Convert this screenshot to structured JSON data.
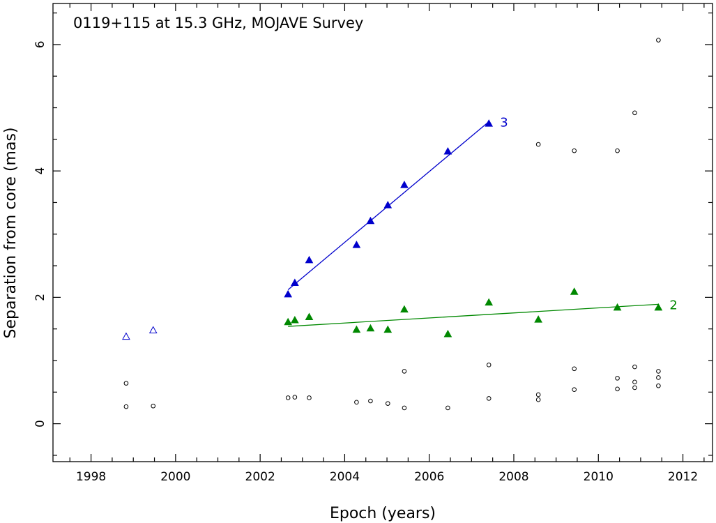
{
  "chart_data": {
    "type": "scatter",
    "title": "0119+115 at 15.3 GHz, MOJAVE Survey",
    "xlabel": "Epoch (years)",
    "ylabel": "Separation from core (mas)",
    "xlim": [
      1997.1,
      2012.7
    ],
    "ylim": [
      -0.6,
      6.65
    ],
    "xticks": [
      1998,
      2000,
      2002,
      2004,
      2006,
      2008,
      2010,
      2012
    ],
    "xtick_labels": [
      "1998",
      "2000",
      "2002",
      "2004",
      "2006",
      "2008",
      "2010",
      "2012"
    ],
    "yticks": [
      0,
      2,
      4,
      6
    ],
    "ytick_labels": [
      "0",
      "2",
      "4",
      "6"
    ],
    "series": [
      {
        "name": "3",
        "label": "3",
        "color": "#0000cc",
        "marker": "filled-triangle",
        "x": [
          2002.66,
          2002.82,
          2003.16,
          2004.28,
          2004.61,
          2005.02,
          2005.41,
          2006.44,
          2007.41
        ],
        "y": [
          2.05,
          2.23,
          2.59,
          2.83,
          3.21,
          3.46,
          3.78,
          4.31,
          4.75
        ],
        "fit": {
          "x": [
            2002.66,
            2007.41
          ],
          "y": [
            2.12,
            4.78
          ]
        }
      },
      {
        "name": "2",
        "label": "2",
        "color": "#008800",
        "marker": "filled-triangle",
        "x": [
          2002.66,
          2002.82,
          2003.16,
          2004.28,
          2004.61,
          2005.02,
          2005.41,
          2006.44,
          2007.41,
          2008.58,
          2009.43,
          2010.45,
          2011.42
        ],
        "y": [
          1.61,
          1.64,
          1.69,
          1.49,
          1.51,
          1.49,
          1.81,
          1.42,
          1.92,
          1.65,
          2.09,
          1.84,
          1.84
        ],
        "fit": {
          "x": [
            2002.66,
            2011.42
          ],
          "y": [
            1.54,
            1.89
          ]
        }
      },
      {
        "name": "early-components",
        "color": "#0000cc",
        "marker": "open-triangle",
        "x": [
          1998.83,
          1999.47
        ],
        "y": [
          1.38,
          1.48
        ]
      },
      {
        "name": "other-components",
        "color": "#000000",
        "marker": "open-circle",
        "x": [
          1998.83,
          1998.83,
          1999.47,
          2002.66,
          2002.82,
          2003.16,
          2004.28,
          2004.61,
          2005.02,
          2005.41,
          2005.41,
          2006.44,
          2007.41,
          2007.41,
          2008.58,
          2008.58,
          2008.58,
          2009.43,
          2009.43,
          2009.43,
          2010.45,
          2010.45,
          2010.45,
          2010.86,
          2010.86,
          2010.86,
          2010.86,
          2011.42,
          2011.42,
          2011.42,
          2011.42
        ],
        "y": [
          0.64,
          0.27,
          0.28,
          0.41,
          0.42,
          0.41,
          0.34,
          0.36,
          0.32,
          0.25,
          0.83,
          0.25,
          0.4,
          0.93,
          0.38,
          0.46,
          4.42,
          0.54,
          0.87,
          4.32,
          0.55,
          0.72,
          4.32,
          0.57,
          0.66,
          0.9,
          4.92,
          0.6,
          0.73,
          0.83,
          6.07
        ]
      }
    ]
  }
}
